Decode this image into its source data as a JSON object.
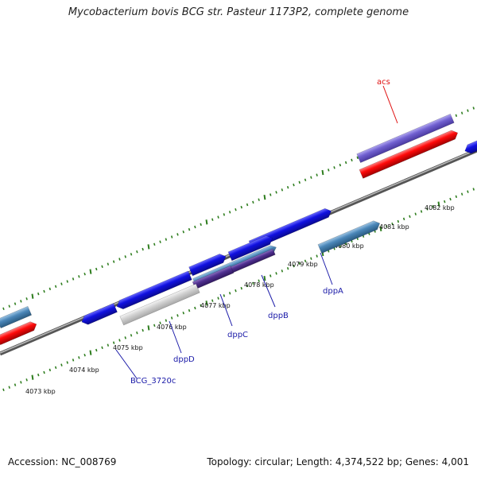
{
  "title": "Mycobacterium bovis BCG str. Pasteur 1173P2, complete genome",
  "footer": {
    "accession": "Accession: NC_008769",
    "summary": "Topology: circular; Length: 4,374,522 bp; Genes: 4,001"
  },
  "ticks": [
    "4073 kbp",
    "4074 kbp",
    "4075 kbp",
    "4076 kbp",
    "4077 kbp",
    "4078 kbp",
    "4079 kbp",
    "4080 kbp",
    "4081 kbp",
    "4082 kbp"
  ],
  "gene_labels": [
    {
      "name": "acs",
      "color": "#e01010"
    },
    {
      "name": "dppA",
      "color": "#1a1aa8"
    },
    {
      "name": "dppB",
      "color": "#1a1aa8"
    },
    {
      "name": "dppC",
      "color": "#1a1aa8"
    },
    {
      "name": "dppD",
      "color": "#1a1aa8"
    },
    {
      "name": "BCG_3720c",
      "color": "#1a1aa8"
    }
  ],
  "colors": {
    "backbone": "#7a7a7a",
    "tick": "#2e7d1e",
    "cds_blue": "#1010e0",
    "cds_red": "#ff0a0a",
    "cds_steel": "#4a86b8",
    "cds_violet": "#7060d0",
    "cds_purple": "#503090",
    "cds_grey": "#c8c8c8"
  }
}
